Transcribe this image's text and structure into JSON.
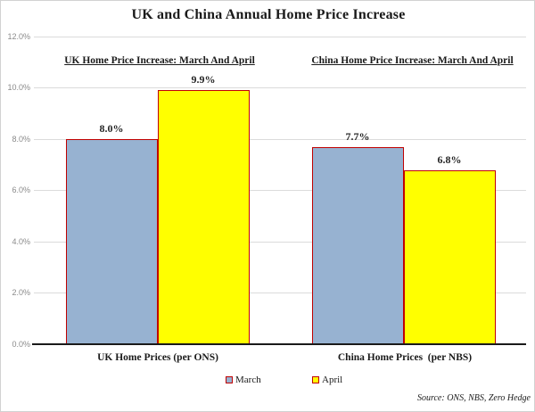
{
  "title": "UK and China Annual Home Price Increase",
  "colors": {
    "march_fill": "#97B2D1",
    "april_fill": "#FFFF00",
    "bar_border": "#C00000",
    "gridline": "#DBDBDB",
    "axis_line": "#1A1A1A",
    "tick_label": "#8A8A8A",
    "text": "#1A1A1A"
  },
  "chart_data": {
    "type": "bar",
    "title": "UK and China Annual Home Price Increase",
    "group_titles": [
      "UK Home Price Increase: March And April",
      "China Home Price Increase: March And April"
    ],
    "categories": [
      "UK Home Prices (per ONS)",
      "China Home Prices  (per NBS)"
    ],
    "series": [
      {
        "name": "March",
        "values": [
          8.0,
          7.7
        ],
        "labels": [
          "8.0%",
          "7.7%"
        ],
        "fill": "#97B2D1",
        "border": "#C00000"
      },
      {
        "name": "April",
        "values": [
          9.9,
          6.8
        ],
        "labels": [
          "9.9%",
          "6.8%"
        ],
        "fill": "#FFFF00",
        "border": "#C00000"
      }
    ],
    "ylim": [
      0,
      12
    ],
    "y_ticks": [
      {
        "value": 0,
        "label": "0.0%"
      },
      {
        "value": 2,
        "label": "2.0%"
      },
      {
        "value": 4,
        "label": "4.0%"
      },
      {
        "value": 6,
        "label": "6.0%"
      },
      {
        "value": 8,
        "label": "8.0%"
      },
      {
        "value": 10,
        "label": "10.0%"
      },
      {
        "value": 12,
        "label": "12.0%"
      }
    ],
    "grid": true,
    "legend_position": "bottom",
    "legend": [
      "March",
      "April"
    ],
    "source": "Source: ONS, NBS, Zero Hedge"
  }
}
